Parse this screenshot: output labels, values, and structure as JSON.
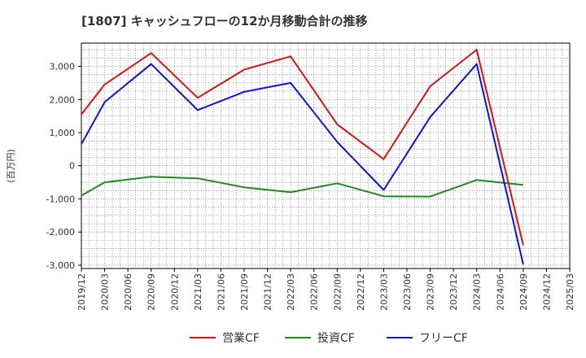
{
  "chart_data": {
    "type": "line",
    "title": "[1807]  キャッシュフローの12か月移動合計の推移",
    "ylabel": "(百万円)",
    "xlabel": "",
    "ylim": [
      -3100,
      3700
    ],
    "yticks": [
      3000,
      2000,
      1000,
      0,
      -1000,
      -2000,
      -3000
    ],
    "ytick_labels": [
      "3,000",
      "2,000",
      "1,000",
      "0",
      "-1,000",
      "-2,000",
      "-3,000"
    ],
    "categories": [
      "2019/12",
      "2020/03",
      "2020/06",
      "2020/09",
      "2020/12",
      "2021/03",
      "2021/06",
      "2021/09",
      "2021/12",
      "2022/03",
      "2022/06",
      "2022/09",
      "2022/12",
      "2023/03",
      "2023/06",
      "2023/09",
      "2023/12",
      "2024/03",
      "2024/06",
      "2024/09",
      "2024/12",
      "2025/03"
    ],
    "legend_position": "bottom",
    "grid": true,
    "series": [
      {
        "name": "営業CF",
        "color": "#dd1111",
        "values": [
          1550,
          2450,
          null,
          3400,
          null,
          2050,
          null,
          2900,
          null,
          3300,
          null,
          1250,
          null,
          200,
          null,
          2400,
          null,
          3500,
          null,
          -2400,
          null,
          null
        ]
      },
      {
        "name": "投資CF",
        "color": "#228822",
        "values": [
          -900,
          -500,
          null,
          -330,
          null,
          -380,
          null,
          -650,
          null,
          -800,
          null,
          -530,
          null,
          -920,
          null,
          -930,
          null,
          -430,
          null,
          -580,
          null,
          null
        ]
      },
      {
        "name": "フリーCF",
        "color": "#1111dd",
        "values": [
          650,
          1920,
          null,
          3070,
          null,
          1680,
          null,
          2230,
          null,
          2500,
          null,
          720,
          null,
          -730,
          null,
          1470,
          null,
          3070,
          null,
          -2980,
          null,
          null
        ]
      }
    ]
  }
}
